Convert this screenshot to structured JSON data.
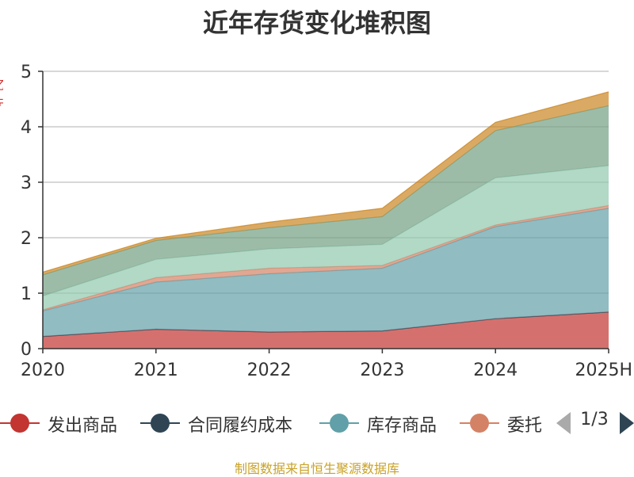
{
  "chart_data": {
    "type": "area",
    "title": "近年存货变化堆积图",
    "categories": [
      "2020",
      "2021",
      "2022",
      "2023",
      "2024",
      "2025H"
    ],
    "ylim": [
      0,
      5
    ],
    "yticks": [
      "0",
      "1",
      "2",
      "3",
      "4",
      "5"
    ],
    "grid": true,
    "stacked": true,
    "series": [
      {
        "name": "发出商品",
        "color": "#c23531",
        "values": [
          0.22,
          0.35,
          0.3,
          0.32,
          0.54,
          0.66
        ]
      },
      {
        "name": "合同履约成本",
        "color": "#2f4554",
        "values": [
          0.0,
          0.0,
          0.0,
          0.0,
          0.0,
          0.0
        ]
      },
      {
        "name": "库存商品",
        "color": "#61a0a8",
        "values": [
          0.46,
          0.85,
          1.05,
          1.13,
          1.66,
          1.87
        ]
      },
      {
        "name": "委托加工物资",
        "color": "#d48265",
        "values": [
          0.02,
          0.08,
          0.1,
          0.05,
          0.03,
          0.05
        ]
      },
      {
        "name": "",
        "color": "#91c7ae",
        "values": [
          0.25,
          0.33,
          0.35,
          0.38,
          0.85,
          0.72
        ]
      },
      {
        "name": "",
        "color": "#749f83",
        "values": [
          0.38,
          0.34,
          0.38,
          0.5,
          0.85,
          1.08
        ]
      },
      {
        "name": "",
        "color": "#ca8622",
        "values": [
          0.05,
          0.04,
          0.1,
          0.15,
          0.15,
          0.25
        ]
      }
    ]
  },
  "legend": {
    "items": [
      "发出商品",
      "合同履约成本",
      "库存商品",
      "委托"
    ],
    "page": "1/3"
  },
  "y_unit": "亿元",
  "source": "制图数据来自恒生聚源数据库"
}
